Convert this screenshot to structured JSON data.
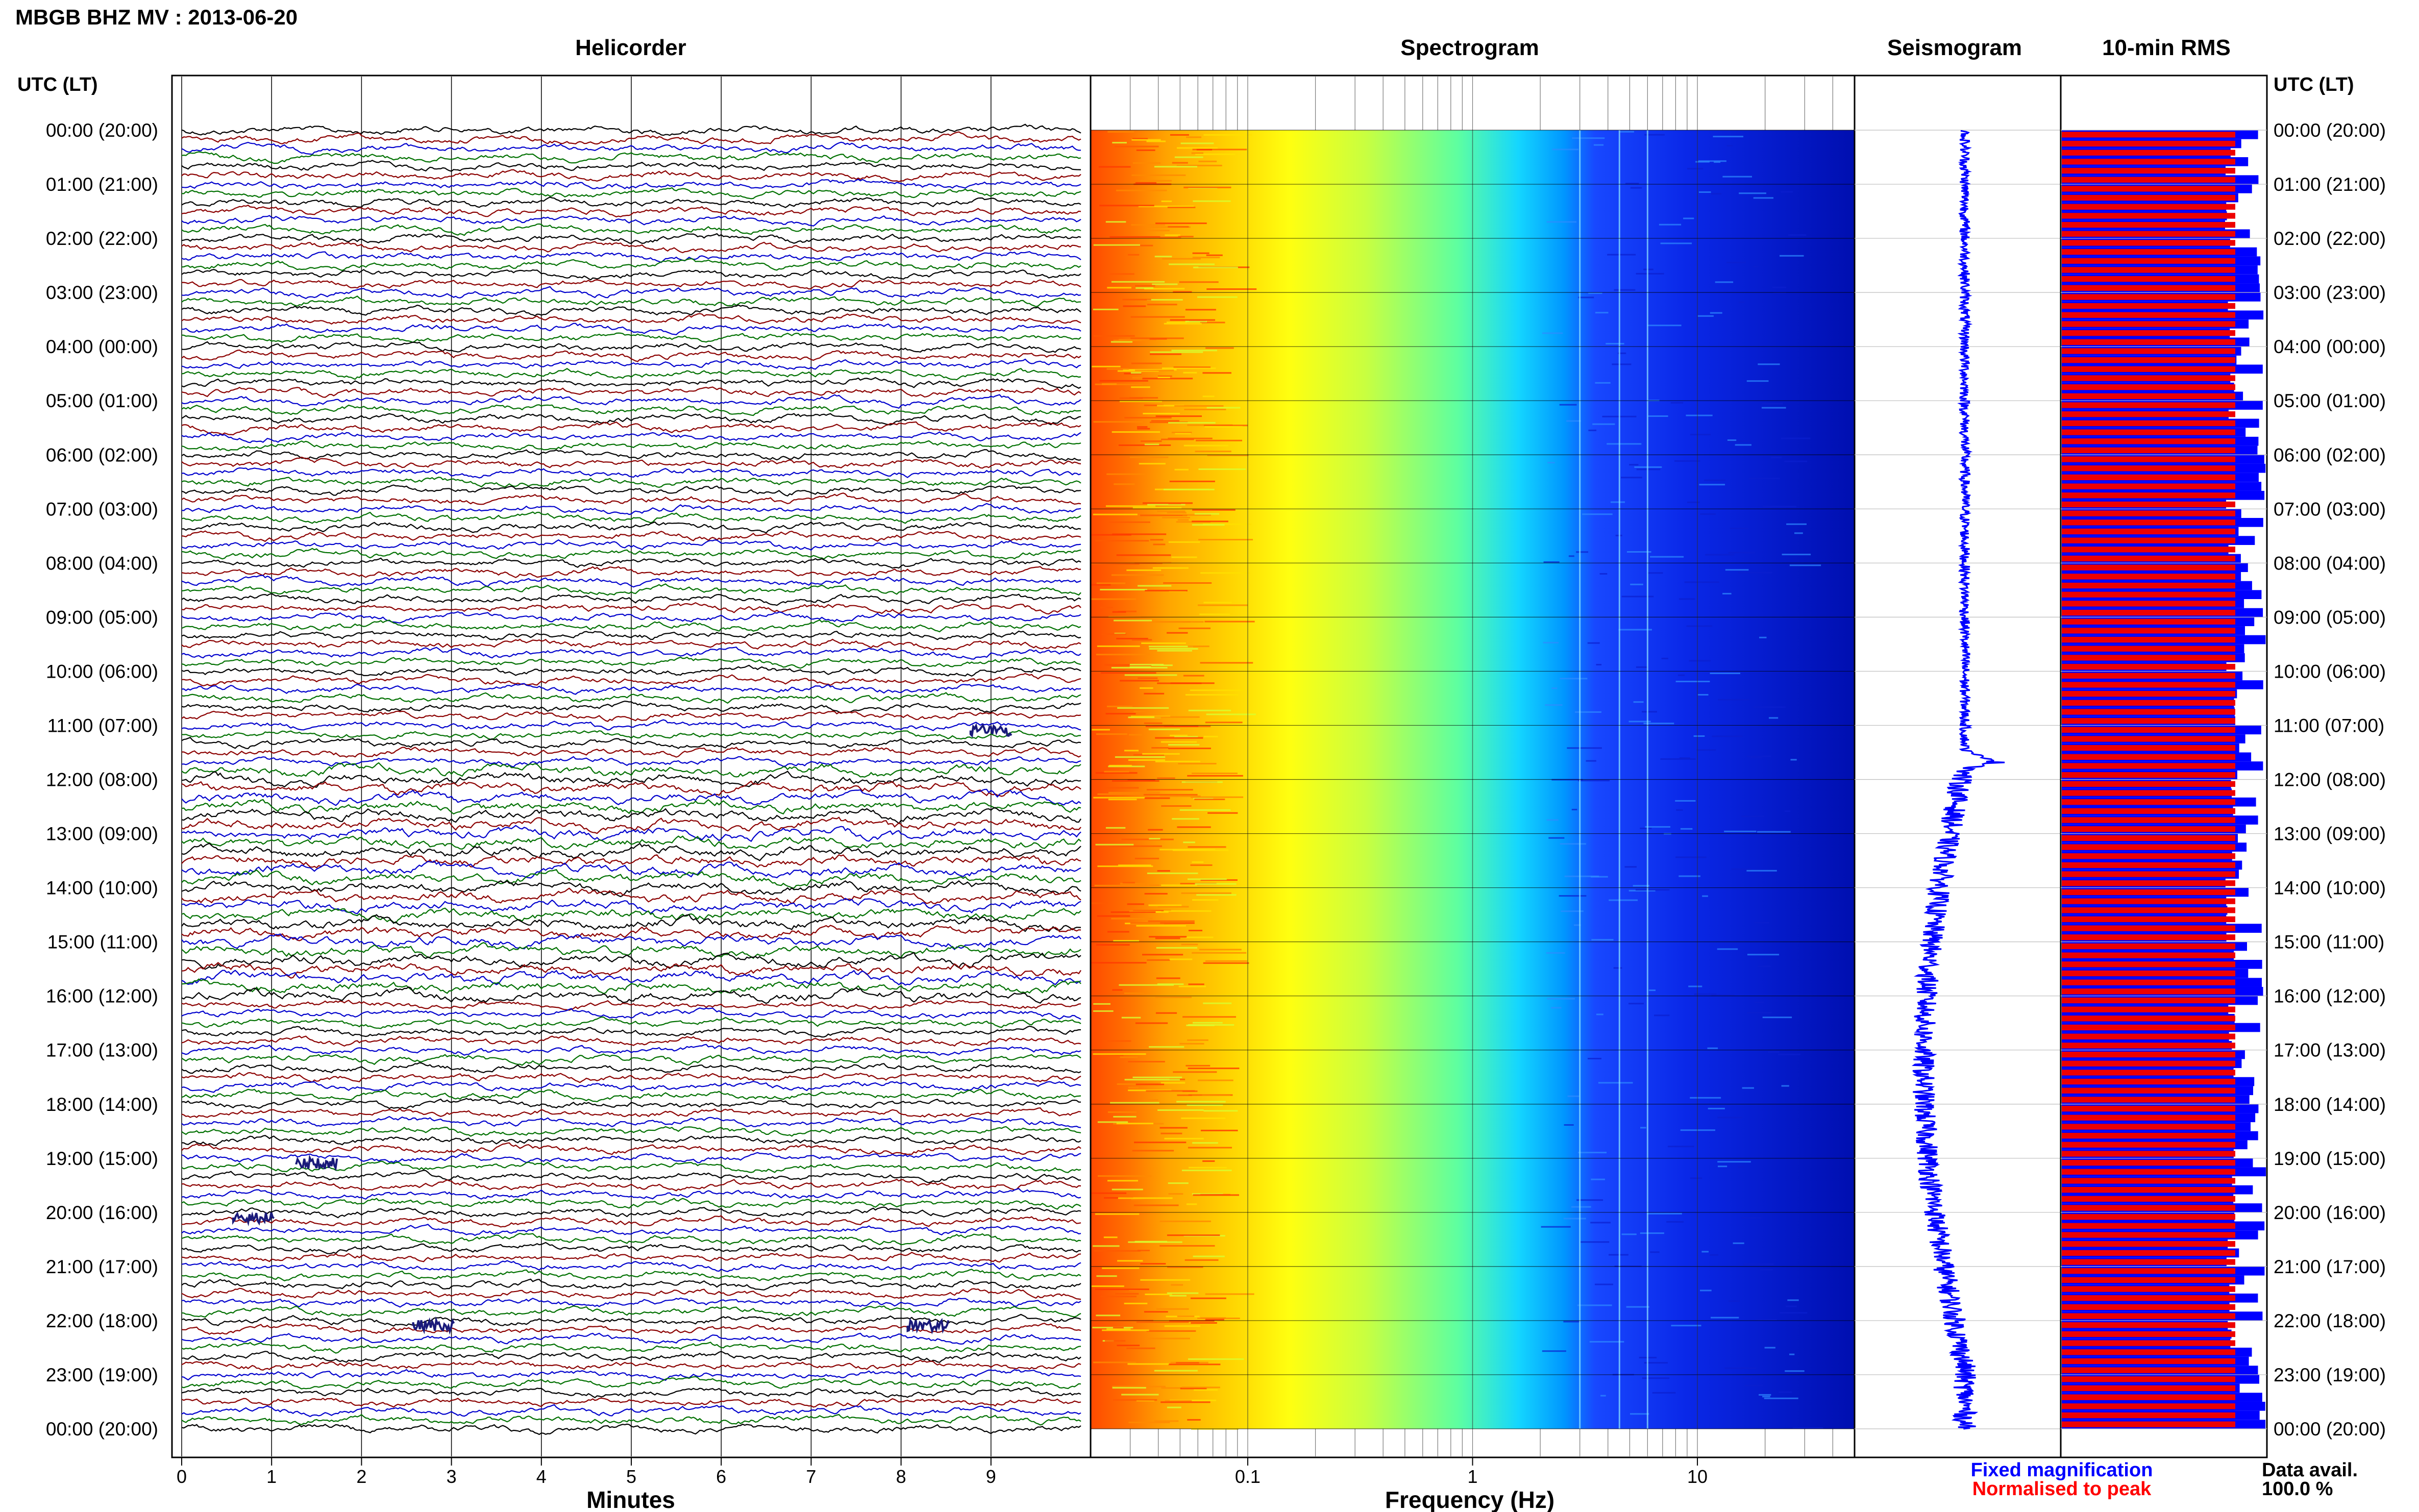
{
  "header": {
    "station_title": "MBGB BHZ MV : 2013-06-20"
  },
  "panels": {
    "helicorder": "Helicorder",
    "spectrogram": "Spectrogram",
    "seismogram": "Seismogram",
    "rms": "10-min RMS"
  },
  "axes": {
    "time_axis_label": "UTC (LT)",
    "time_labels": [
      "00:00 (20:00)",
      "01:00 (21:00)",
      "02:00 (22:00)",
      "03:00 (23:00)",
      "04:00 (00:00)",
      "05:00 (01:00)",
      "06:00 (02:00)",
      "07:00 (03:00)",
      "08:00 (04:00)",
      "09:00 (05:00)",
      "10:00 (06:00)",
      "11:00 (07:00)",
      "12:00 (08:00)",
      "13:00 (09:00)",
      "14:00 (10:00)",
      "15:00 (11:00)",
      "16:00 (12:00)",
      "17:00 (13:00)",
      "18:00 (14:00)",
      "19:00 (15:00)",
      "20:00 (16:00)",
      "21:00 (17:00)",
      "22:00 (18:00)",
      "23:00 (19:00)",
      "00:00 (20:00)"
    ],
    "minutes_label": "Minutes",
    "minutes_ticks": [
      "0",
      "1",
      "2",
      "3",
      "4",
      "5",
      "6",
      "7",
      "8",
      "9"
    ],
    "frequency_label": "Frequency (Hz)",
    "frequency_ticks": [
      "0.1",
      "1",
      "10"
    ]
  },
  "legend": {
    "fixed": "Fixed magnification",
    "normalised": "Normalised to peak",
    "fixed_color": "#0000ff",
    "normalised_color": "#ff0000"
  },
  "data_availability": {
    "label": "Data avail.",
    "value": "100.0 %"
  },
  "colors": {
    "trace_colors": [
      "#000000",
      "#8b0000",
      "#0000cd",
      "#007000"
    ],
    "rms_fixed": "#0000ff",
    "rms_normalised": "#ee0000",
    "seismogram": "#0000ff"
  },
  "chart_data": [
    {
      "type": "line",
      "name": "Helicorder",
      "x_unit": "minutes",
      "xlim": [
        0,
        10
      ],
      "rows": 144,
      "row_minutes": 10,
      "time_span": [
        "00:00",
        "24:00"
      ],
      "events": [
        {
          "time": "11:00",
          "minute": 9.0
        },
        {
          "time": "19:00",
          "minute": 1.5
        },
        {
          "time": "20:00",
          "minute": 0.8
        },
        {
          "time": "22:00",
          "minute": 2.8
        },
        {
          "time": "22:00",
          "minute": 8.3
        }
      ]
    },
    {
      "type": "heatmap",
      "name": "Spectrogram",
      "x_scale": "log",
      "xlim": [
        0.02,
        50
      ],
      "x_ticks": [
        0.1,
        1,
        10
      ],
      "color_map": "jet",
      "energy_band_hz": [
        0.02,
        2
      ],
      "spectral_lines_hz": [
        3,
        4.5,
        6
      ]
    },
    {
      "type": "line",
      "name": "Seismogram",
      "event_time": "11:40"
    },
    {
      "type": "bar",
      "name": "10-min RMS",
      "bars": 144,
      "normalised_level": 0.85,
      "fixed_range": [
        0.8,
        1.0
      ],
      "series": [
        {
          "name": "Fixed magnification",
          "color": "#0000ff"
        },
        {
          "name": "Normalised to peak",
          "color": "#ff0000"
        }
      ]
    }
  ]
}
